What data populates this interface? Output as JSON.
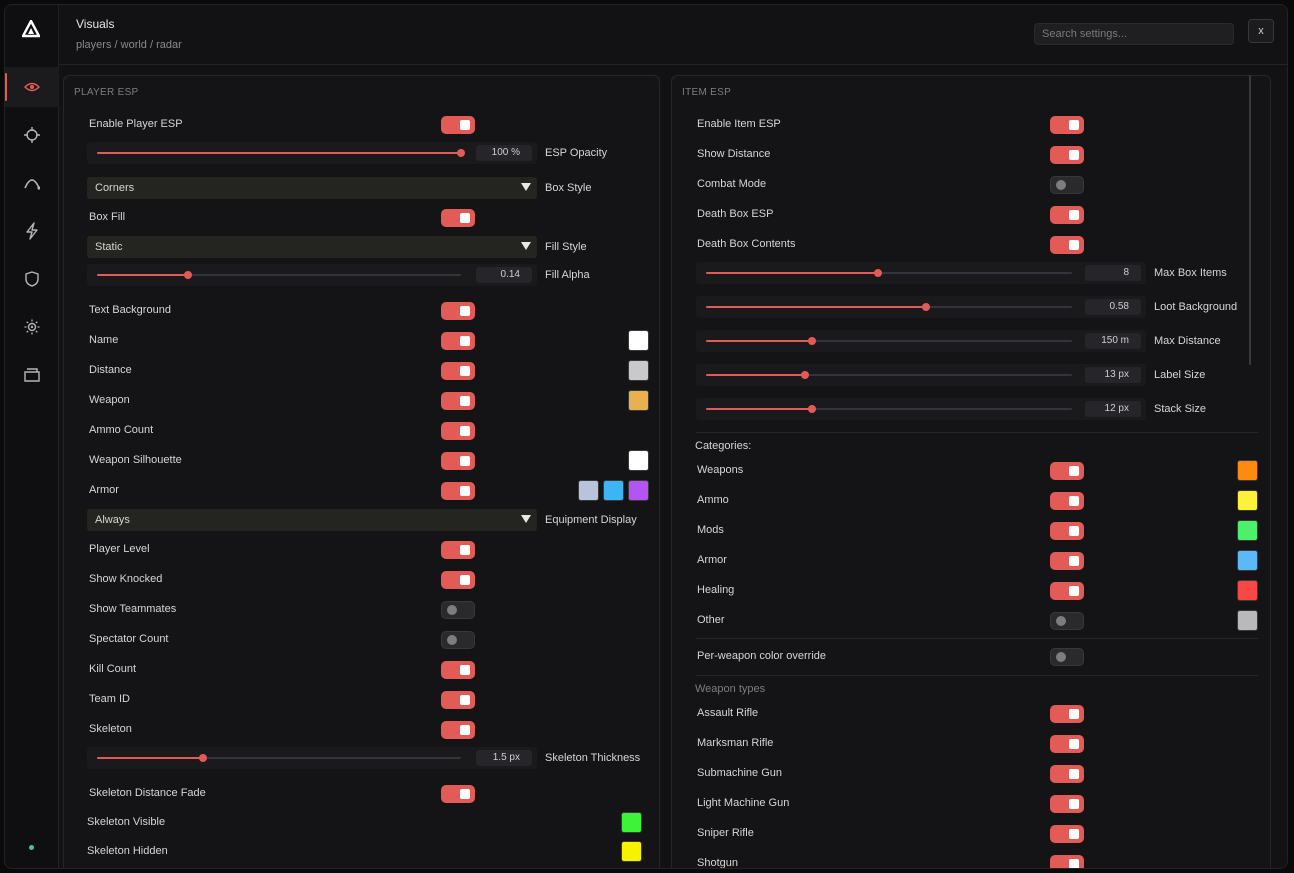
{
  "header": {
    "title": "Visuals",
    "breadcrumb": "players / world / radar",
    "search_placeholder": "Search settings...",
    "close_label": "x"
  },
  "rail": {
    "items": [
      "eye-icon",
      "crosshair-icon",
      "arc-icon",
      "bolt-icon",
      "shield-icon",
      "sun-gear-icon",
      "folder-icon"
    ],
    "active": 0
  },
  "player_esp": {
    "title": "PLAYER ESP",
    "enable": {
      "label": "Enable Player ESP",
      "on": true
    },
    "esp_opacity": {
      "label": "ESP Opacity",
      "value": "100 %",
      "fraction": 1.0
    },
    "box_style": {
      "label": "Box Style",
      "value": "Corners"
    },
    "box_fill": {
      "label": "Box Fill",
      "on": true
    },
    "fill_style": {
      "label": "Fill Style",
      "value": "Static"
    },
    "fill_alpha": {
      "label": "Fill Alpha",
      "value": "0.14",
      "fraction": 0.25
    },
    "toggles": [
      {
        "label": "Text Background",
        "on": true
      },
      {
        "label": "Name",
        "on": true,
        "colors": [
          "#ffffff"
        ]
      },
      {
        "label": "Distance",
        "on": true,
        "colors": [
          "#c9c9c9"
        ]
      },
      {
        "label": "Weapon",
        "on": true,
        "colors": [
          "#e8b14f"
        ]
      },
      {
        "label": "Ammo Count",
        "on": true
      },
      {
        "label": "Weapon Silhouette",
        "on": true,
        "colors": [
          "#ffffff"
        ]
      },
      {
        "label": "Armor",
        "on": true,
        "colors": [
          "#b9c4dc",
          "#3db5f5",
          "#b255f2"
        ]
      }
    ],
    "equipment_display": {
      "label": "Equipment Display",
      "value": "Always"
    },
    "toggles2": [
      {
        "label": "Player Level",
        "on": true
      },
      {
        "label": "Show Knocked",
        "on": true
      },
      {
        "label": "Show Teammates",
        "on": false
      },
      {
        "label": "Spectator Count",
        "on": false
      },
      {
        "label": "Kill Count",
        "on": true
      },
      {
        "label": "Team ID",
        "on": true
      },
      {
        "label": "Skeleton",
        "on": true
      }
    ],
    "skeleton_thickness": {
      "label": "Skeleton Thickness",
      "value": "1.5 px",
      "fraction": 0.29
    },
    "skeleton_distance_fade": {
      "label": "Skeleton Distance Fade",
      "on": true
    },
    "skeleton_visible": {
      "label": "Skeleton Visible",
      "color": "#3ef23a"
    },
    "skeleton_hidden": {
      "label": "Skeleton Hidden",
      "color": "#f7f200"
    }
  },
  "item_esp": {
    "title": "ITEM ESP",
    "toggles": [
      {
        "label": "Enable Item ESP",
        "on": true
      },
      {
        "label": "Show Distance",
        "on": true
      },
      {
        "label": "Combat Mode",
        "on": false
      },
      {
        "label": "Death Box ESP",
        "on": true
      },
      {
        "label": "Death Box Contents",
        "on": true
      }
    ],
    "sliders": [
      {
        "label": "Max Box Items",
        "value": "8",
        "fraction": 0.47
      },
      {
        "label": "Loot Background",
        "value": "0.58",
        "fraction": 0.6
      },
      {
        "label": "Max Distance",
        "value": "150 m",
        "fraction": 0.29
      },
      {
        "label": "Label Size",
        "value": "13 px",
        "fraction": 0.27
      },
      {
        "label": "Stack Size",
        "value": "12 px",
        "fraction": 0.29
      }
    ],
    "categories_title": "Categories:",
    "categories": [
      {
        "label": "Weapons",
        "on": true,
        "color": "#ff8a10"
      },
      {
        "label": "Ammo",
        "on": true,
        "color": "#fdf23a"
      },
      {
        "label": "Mods",
        "on": true,
        "color": "#4cf06a"
      },
      {
        "label": "Armor",
        "on": true,
        "color": "#5cb8f7"
      },
      {
        "label": "Healing",
        "on": true,
        "color": "#f74747"
      },
      {
        "label": "Other",
        "on": false,
        "color": "#b9b9b9"
      }
    ],
    "per_weapon_override": {
      "label": "Per-weapon color override",
      "on": false
    },
    "weapon_types_title": "Weapon types",
    "weapon_types": [
      {
        "label": "Assault Rifle",
        "on": true
      },
      {
        "label": "Marksman Rifle",
        "on": true
      },
      {
        "label": "Submachine Gun",
        "on": true
      },
      {
        "label": "Light Machine Gun",
        "on": true
      },
      {
        "label": "Sniper Rifle",
        "on": true
      },
      {
        "label": "Shotgun",
        "on": true
      }
    ]
  }
}
